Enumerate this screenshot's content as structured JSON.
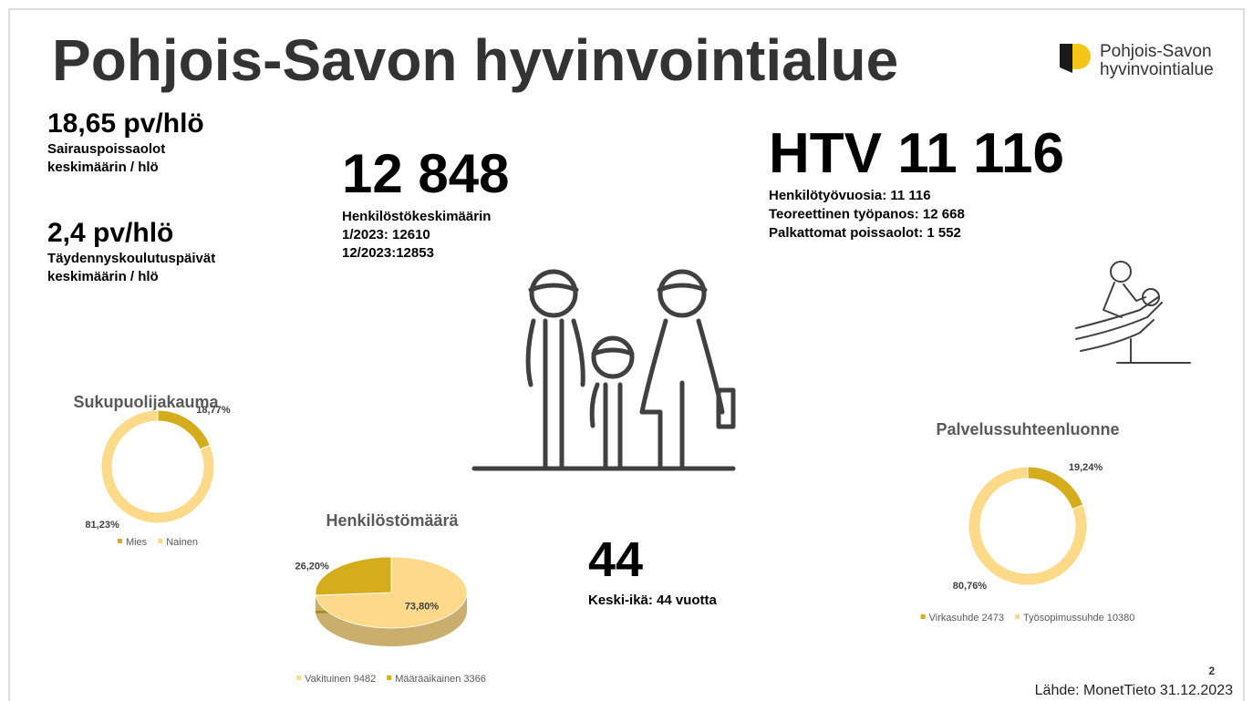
{
  "title": "Pohjois-Savon hyvinvointialue",
  "logo": {
    "line1": "Pohjois-Savon",
    "line2": "hyvinvointialue"
  },
  "stats": [
    {
      "headline": "18,65 pv/hlö",
      "lines": [
        "Sairauspoissaolot",
        "keskimäärin / hlö"
      ]
    },
    {
      "headline": "2,4 pv/hlö",
      "lines": [
        "Täydennyskoulutuspäivät",
        "keskimäärin / hlö"
      ]
    },
    {
      "headline": "12 848",
      "lines": [
        "Henkilöstökeskimäärin",
        "1/2023: 12610",
        "12/2023:12853"
      ]
    },
    {
      "headline": "HTV 11 116",
      "lines": [
        "Henkilötyövuosia: 11 116",
        "Teoreettinen työpanos: 12 668",
        "Palkattomat poissaolot: 1 552"
      ]
    },
    {
      "headline": "44",
      "lines": [
        "Keski-ikä: 44 vuotta"
      ]
    }
  ],
  "chart_data": [
    {
      "type": "donut",
      "title": "Sukupuolijakauma",
      "categories": [
        "Mies",
        "Nainen"
      ],
      "values": [
        18.77,
        81.23
      ],
      "value_labels": [
        "18,77%",
        "81,23%"
      ],
      "colors": [
        "#d4ac1c",
        "#fdd98a"
      ]
    },
    {
      "type": "pie3d",
      "title": "Henkilöstömäärä",
      "categories": [
        "Vakituinen 9482",
        "Määräaikainen 3366"
      ],
      "values": [
        73.8,
        26.2
      ],
      "value_labels": [
        "73,80%",
        "26,20%"
      ],
      "colors": [
        "#fdd98a",
        "#d4ac1c"
      ]
    },
    {
      "type": "donut",
      "title": "Palvelussuhteenluonne",
      "categories": [
        "Virkasuhde 2473",
        "Työsopimussuhde 10380"
      ],
      "values": [
        19.24,
        80.76
      ],
      "value_labels": [
        "19,24%",
        "80,76%"
      ],
      "colors": [
        "#d4ac1c",
        "#fdd98a"
      ]
    }
  ],
  "footer": {
    "page": "2",
    "source": "Lähde: MonetTieto 31.12.2023"
  }
}
